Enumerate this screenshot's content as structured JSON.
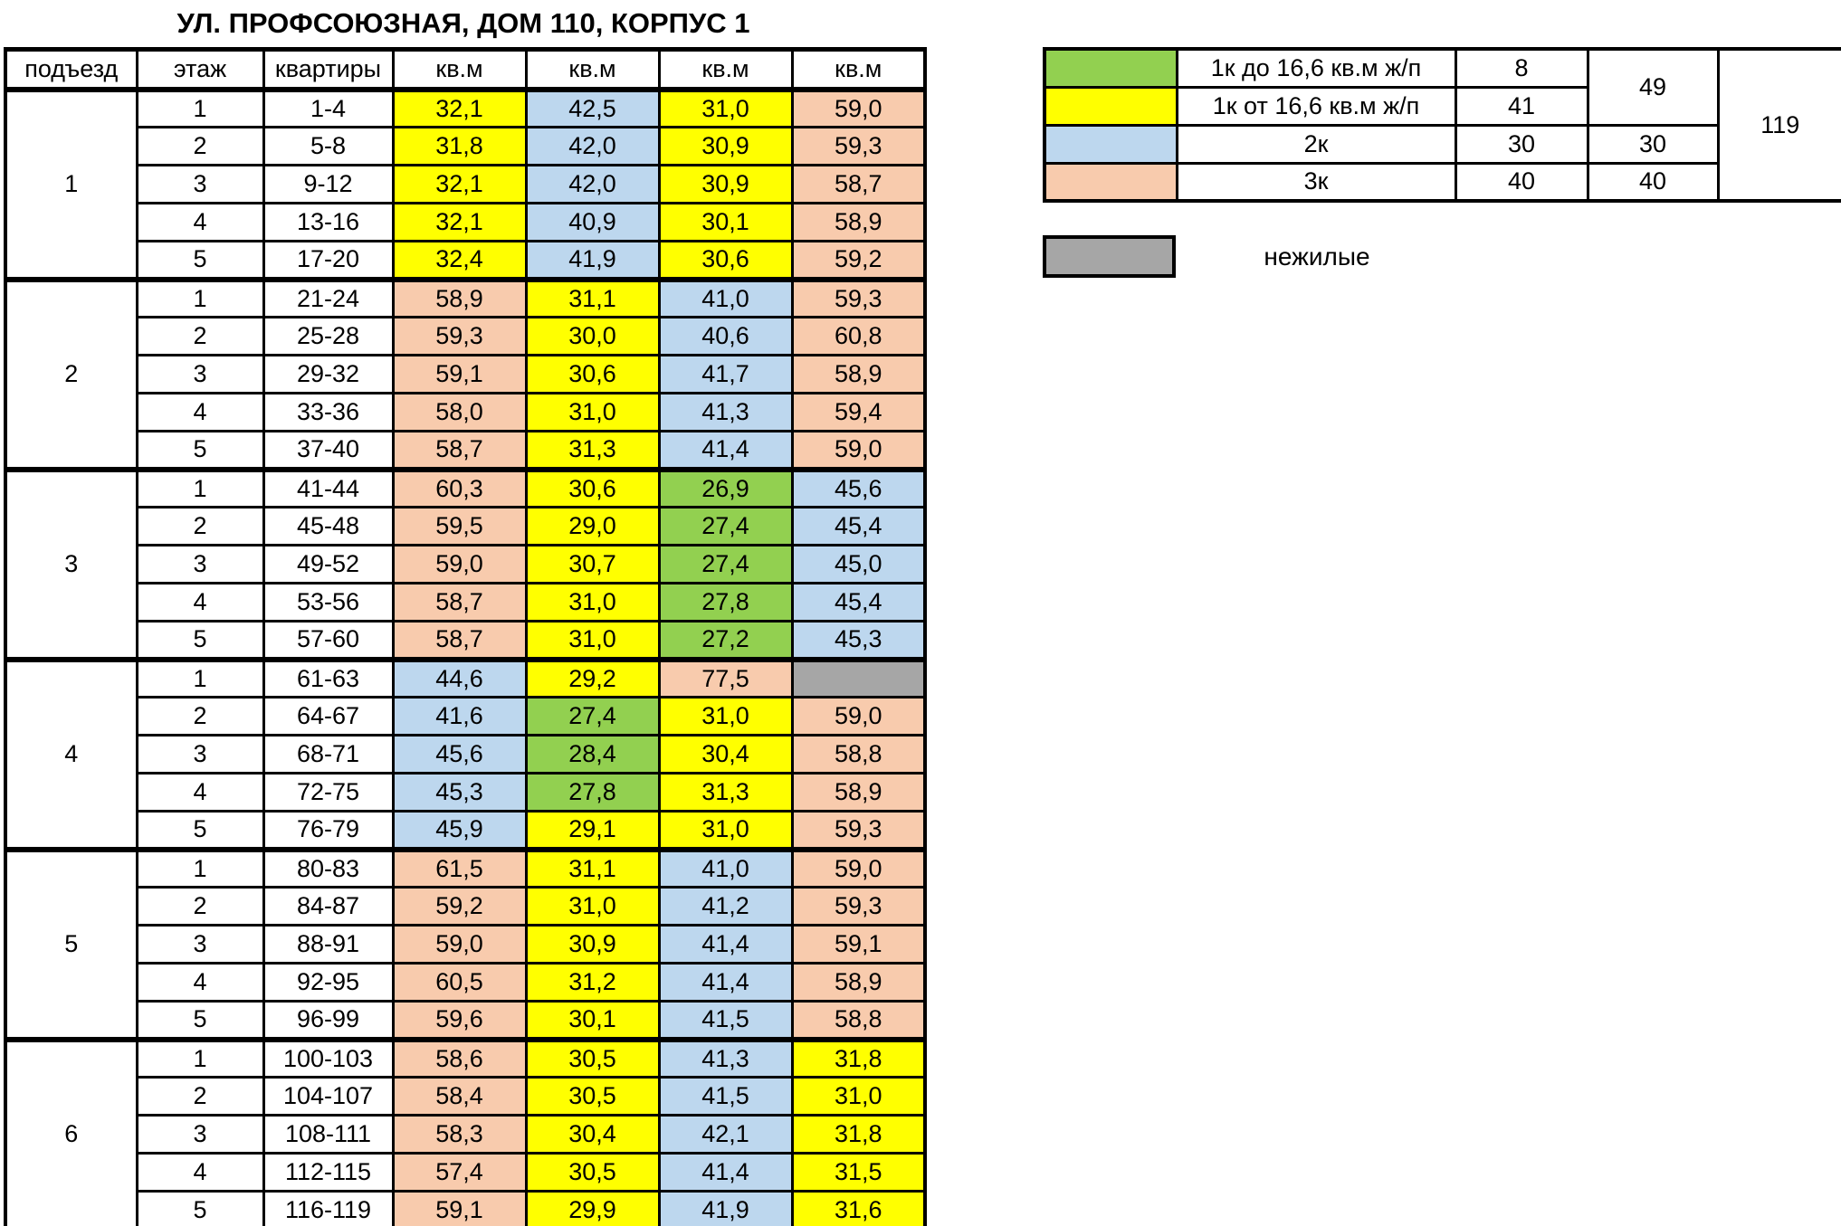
{
  "title": "УЛ. ПРОФСОЮЗНАЯ, ДОМ 110, КОРПУС 1",
  "colors": {
    "yellow": "#FFFF00",
    "blue": "#BDD7EE",
    "peach": "#F8CBAD",
    "green": "#92D050",
    "gray": "#A6A6A6",
    "border": "#000000"
  },
  "table": {
    "headers": [
      "подъезд",
      "этаж",
      "квартиры",
      "кв.м",
      "кв.м",
      "кв.м",
      "кв.м"
    ],
    "sections": [
      {
        "entrance": "1",
        "rows": [
          {
            "floor": "1",
            "apartments": "1-4",
            "areas": [
              {
                "v": "32,1",
                "c": "yellow"
              },
              {
                "v": "42,5",
                "c": "blue"
              },
              {
                "v": "31,0",
                "c": "yellow"
              },
              {
                "v": "59,0",
                "c": "peach"
              }
            ]
          },
          {
            "floor": "2",
            "apartments": "5-8",
            "areas": [
              {
                "v": "31,8",
                "c": "yellow"
              },
              {
                "v": "42,0",
                "c": "blue"
              },
              {
                "v": "30,9",
                "c": "yellow"
              },
              {
                "v": "59,3",
                "c": "peach"
              }
            ]
          },
          {
            "floor": "3",
            "apartments": "9-12",
            "areas": [
              {
                "v": "32,1",
                "c": "yellow"
              },
              {
                "v": "42,0",
                "c": "blue"
              },
              {
                "v": "30,9",
                "c": "yellow"
              },
              {
                "v": "58,7",
                "c": "peach"
              }
            ]
          },
          {
            "floor": "4",
            "apartments": "13-16",
            "areas": [
              {
                "v": "32,1",
                "c": "yellow"
              },
              {
                "v": "40,9",
                "c": "blue"
              },
              {
                "v": "30,1",
                "c": "yellow"
              },
              {
                "v": "58,9",
                "c": "peach"
              }
            ]
          },
          {
            "floor": "5",
            "apartments": "17-20",
            "areas": [
              {
                "v": "32,4",
                "c": "yellow"
              },
              {
                "v": "41,9",
                "c": "blue"
              },
              {
                "v": "30,6",
                "c": "yellow"
              },
              {
                "v": "59,2",
                "c": "peach"
              }
            ]
          }
        ]
      },
      {
        "entrance": "2",
        "rows": [
          {
            "floor": "1",
            "apartments": "21-24",
            "areas": [
              {
                "v": "58,9",
                "c": "peach"
              },
              {
                "v": "31,1",
                "c": "yellow"
              },
              {
                "v": "41,0",
                "c": "blue"
              },
              {
                "v": "59,3",
                "c": "peach"
              }
            ]
          },
          {
            "floor": "2",
            "apartments": "25-28",
            "areas": [
              {
                "v": "59,3",
                "c": "peach"
              },
              {
                "v": "30,0",
                "c": "yellow"
              },
              {
                "v": "40,6",
                "c": "blue"
              },
              {
                "v": "60,8",
                "c": "peach"
              }
            ]
          },
          {
            "floor": "3",
            "apartments": "29-32",
            "areas": [
              {
                "v": "59,1",
                "c": "peach"
              },
              {
                "v": "30,6",
                "c": "yellow"
              },
              {
                "v": "41,7",
                "c": "blue"
              },
              {
                "v": "58,9",
                "c": "peach"
              }
            ]
          },
          {
            "floor": "4",
            "apartments": "33-36",
            "areas": [
              {
                "v": "58,0",
                "c": "peach"
              },
              {
                "v": "31,0",
                "c": "yellow"
              },
              {
                "v": "41,3",
                "c": "blue"
              },
              {
                "v": "59,4",
                "c": "peach"
              }
            ]
          },
          {
            "floor": "5",
            "apartments": "37-40",
            "areas": [
              {
                "v": "58,7",
                "c": "peach"
              },
              {
                "v": "31,3",
                "c": "yellow"
              },
              {
                "v": "41,4",
                "c": "blue"
              },
              {
                "v": "59,0",
                "c": "peach"
              }
            ]
          }
        ]
      },
      {
        "entrance": "3",
        "rows": [
          {
            "floor": "1",
            "apartments": "41-44",
            "areas": [
              {
                "v": "60,3",
                "c": "peach"
              },
              {
                "v": "30,6",
                "c": "yellow"
              },
              {
                "v": "26,9",
                "c": "green"
              },
              {
                "v": "45,6",
                "c": "blue"
              }
            ]
          },
          {
            "floor": "2",
            "apartments": "45-48",
            "areas": [
              {
                "v": "59,5",
                "c": "peach"
              },
              {
                "v": "29,0",
                "c": "yellow"
              },
              {
                "v": "27,4",
                "c": "green"
              },
              {
                "v": "45,4",
                "c": "blue"
              }
            ]
          },
          {
            "floor": "3",
            "apartments": "49-52",
            "areas": [
              {
                "v": "59,0",
                "c": "peach"
              },
              {
                "v": "30,7",
                "c": "yellow"
              },
              {
                "v": "27,4",
                "c": "green"
              },
              {
                "v": "45,0",
                "c": "blue"
              }
            ]
          },
          {
            "floor": "4",
            "apartments": "53-56",
            "areas": [
              {
                "v": "58,7",
                "c": "peach"
              },
              {
                "v": "31,0",
                "c": "yellow"
              },
              {
                "v": "27,8",
                "c": "green"
              },
              {
                "v": "45,4",
                "c": "blue"
              }
            ]
          },
          {
            "floor": "5",
            "apartments": "57-60",
            "areas": [
              {
                "v": "58,7",
                "c": "peach"
              },
              {
                "v": "31,0",
                "c": "yellow"
              },
              {
                "v": "27,2",
                "c": "green"
              },
              {
                "v": "45,3",
                "c": "blue"
              }
            ]
          }
        ]
      },
      {
        "entrance": "4",
        "rows": [
          {
            "floor": "1",
            "apartments": "61-63",
            "areas": [
              {
                "v": "44,6",
                "c": "blue"
              },
              {
                "v": "29,2",
                "c": "yellow"
              },
              {
                "v": "77,5",
                "c": "peach"
              },
              {
                "v": "",
                "c": "gray"
              }
            ]
          },
          {
            "floor": "2",
            "apartments": "64-67",
            "areas": [
              {
                "v": "41,6",
                "c": "blue"
              },
              {
                "v": "27,4",
                "c": "green"
              },
              {
                "v": "31,0",
                "c": "yellow"
              },
              {
                "v": "59,0",
                "c": "peach"
              }
            ]
          },
          {
            "floor": "3",
            "apartments": "68-71",
            "areas": [
              {
                "v": "45,6",
                "c": "blue"
              },
              {
                "v": "28,4",
                "c": "green"
              },
              {
                "v": "30,4",
                "c": "yellow"
              },
              {
                "v": "58,8",
                "c": "peach"
              }
            ]
          },
          {
            "floor": "4",
            "apartments": "72-75",
            "areas": [
              {
                "v": "45,3",
                "c": "blue"
              },
              {
                "v": "27,8",
                "c": "green"
              },
              {
                "v": "31,3",
                "c": "yellow"
              },
              {
                "v": "58,9",
                "c": "peach"
              }
            ]
          },
          {
            "floor": "5",
            "apartments": "76-79",
            "areas": [
              {
                "v": "45,9",
                "c": "blue"
              },
              {
                "v": "29,1",
                "c": "yellow"
              },
              {
                "v": "31,0",
                "c": "yellow"
              },
              {
                "v": "59,3",
                "c": "peach"
              }
            ]
          }
        ]
      },
      {
        "entrance": "5",
        "rows": [
          {
            "floor": "1",
            "apartments": "80-83",
            "areas": [
              {
                "v": "61,5",
                "c": "peach"
              },
              {
                "v": "31,1",
                "c": "yellow"
              },
              {
                "v": "41,0",
                "c": "blue"
              },
              {
                "v": "59,0",
                "c": "peach"
              }
            ]
          },
          {
            "floor": "2",
            "apartments": "84-87",
            "areas": [
              {
                "v": "59,2",
                "c": "peach"
              },
              {
                "v": "31,0",
                "c": "yellow"
              },
              {
                "v": "41,2",
                "c": "blue"
              },
              {
                "v": "59,3",
                "c": "peach"
              }
            ]
          },
          {
            "floor": "3",
            "apartments": "88-91",
            "areas": [
              {
                "v": "59,0",
                "c": "peach"
              },
              {
                "v": "30,9",
                "c": "yellow"
              },
              {
                "v": "41,4",
                "c": "blue"
              },
              {
                "v": "59,1",
                "c": "peach"
              }
            ]
          },
          {
            "floor": "4",
            "apartments": "92-95",
            "areas": [
              {
                "v": "60,5",
                "c": "peach"
              },
              {
                "v": "31,2",
                "c": "yellow"
              },
              {
                "v": "41,4",
                "c": "blue"
              },
              {
                "v": "58,9",
                "c": "peach"
              }
            ]
          },
          {
            "floor": "5",
            "apartments": "96-99",
            "areas": [
              {
                "v": "59,6",
                "c": "peach"
              },
              {
                "v": "30,1",
                "c": "yellow"
              },
              {
                "v": "41,5",
                "c": "blue"
              },
              {
                "v": "58,8",
                "c": "peach"
              }
            ]
          }
        ]
      },
      {
        "entrance": "6",
        "rows": [
          {
            "floor": "1",
            "apartments": "100-103",
            "areas": [
              {
                "v": "58,6",
                "c": "peach"
              },
              {
                "v": "30,5",
                "c": "yellow"
              },
              {
                "v": "41,3",
                "c": "blue"
              },
              {
                "v": "31,8",
                "c": "yellow"
              }
            ]
          },
          {
            "floor": "2",
            "apartments": "104-107",
            "areas": [
              {
                "v": "58,4",
                "c": "peach"
              },
              {
                "v": "30,5",
                "c": "yellow"
              },
              {
                "v": "41,5",
                "c": "blue"
              },
              {
                "v": "31,0",
                "c": "yellow"
              }
            ]
          },
          {
            "floor": "3",
            "apartments": "108-111",
            "areas": [
              {
                "v": "58,3",
                "c": "peach"
              },
              {
                "v": "30,4",
                "c": "yellow"
              },
              {
                "v": "42,1",
                "c": "blue"
              },
              {
                "v": "31,8",
                "c": "yellow"
              }
            ]
          },
          {
            "floor": "4",
            "apartments": "112-115",
            "areas": [
              {
                "v": "57,4",
                "c": "peach"
              },
              {
                "v": "30,5",
                "c": "yellow"
              },
              {
                "v": "41,4",
                "c": "blue"
              },
              {
                "v": "31,5",
                "c": "yellow"
              }
            ]
          },
          {
            "floor": "5",
            "apartments": "116-119",
            "areas": [
              {
                "v": "59,1",
                "c": "peach"
              },
              {
                "v": "29,9",
                "c": "yellow"
              },
              {
                "v": "41,9",
                "c": "blue"
              },
              {
                "v": "31,6",
                "c": "yellow"
              }
            ]
          }
        ]
      }
    ]
  },
  "legend": {
    "rows": [
      {
        "color": "green",
        "label": "1к до 16,6 кв.м ж/п",
        "count": "8"
      },
      {
        "color": "yellow",
        "label": "1к от 16,6 кв.м ж/п",
        "count": "41"
      },
      {
        "color": "blue",
        "label": "2к",
        "count": "30",
        "subtotal": "30"
      },
      {
        "color": "peach",
        "label": "3к",
        "count": "40",
        "subtotal": "40"
      }
    ],
    "subtotal_1k": "49",
    "total": "119",
    "non_residential": {
      "color": "gray",
      "label": "нежилые"
    }
  }
}
